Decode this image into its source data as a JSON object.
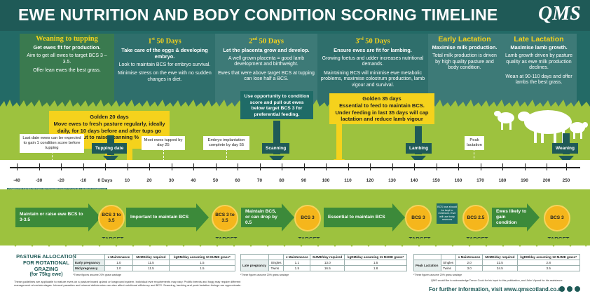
{
  "header": {
    "title": "EWE NUTRITION AND BODY CONDITION SCORING TIMELINE",
    "logo": "QMS"
  },
  "phases": [
    {
      "title": "Weaning to tupping",
      "subtitle": "Get ewes fit for production.",
      "body": [
        "Aim to get all ewes to target BCS 3 – 3.5.",
        "Offer lean ewes the best grass."
      ]
    },
    {
      "title_num": "1",
      "title_sup": "st",
      "title_rest": " 50 Days",
      "subtitle": "Take care of the eggs & developing embryo.",
      "body": [
        "Look to maintain BCS for embryo survival.",
        "Minimise stress on the ewe with no sudden changes in diet."
      ]
    },
    {
      "title_num": "2",
      "title_sup": "nd",
      "title_rest": " 50 Days",
      "subtitle": "Let the placenta grow and develop.",
      "body": [
        "A well grown placenta = good lamb development and birthweight.",
        "Ewes that were above target BCS at tupping can lose half a BCS."
      ]
    },
    {
      "title_num": "3",
      "title_sup": "rd",
      "title_rest": " 50 Days",
      "subtitle": "Ensure ewes are fit for lambing.",
      "body": [
        "Growing foetus and udder increases nutritional demands.",
        "Maintaining BCS will minimise ewe metabolic problems, maximise colostrum production, lamb vigour and survival."
      ]
    },
    {
      "title": "Early Lactation",
      "subtitle": "Maximise milk production.",
      "body": [
        "Total milk production is driven by high quality pasture and body condition."
      ]
    },
    {
      "title": "Late Lactation",
      "subtitle": "Maximise lamb growth.",
      "body": [
        "Lamb growth driven by pasture quality as ewe milk production declines.",
        "Wean at 90-110 days and offer lambs the best grass."
      ]
    }
  ],
  "golden_boxes": [
    {
      "title": "Golden 20 days",
      "body": "Move ewes to fresh pasture regularly, ideally daily, for 10 days before and after tups go out to raise scanning %"
    },
    {
      "title": "Golden 35 days",
      "body": "Essential to feed to maintain BCS. Under feeding in last 35 days will cap lactation and reduce lamb vigour"
    }
  ],
  "teal_callout": "Use opportunity to condition score and pull out ewes below target BCS 3 for preferential feeding.",
  "events": {
    "last_date": "Last date ewes can be expected to gain 1 condition score before tupping",
    "tupping": "Tupping date",
    "most_tupped": "Most ewes tupped by day 25",
    "embryo": "Embryo implantation complete by day 55",
    "scanning": "Scanning",
    "lambing": "Lambing",
    "peak": "Peak lactation",
    "weaning": "Weaning"
  },
  "axis": {
    "ticks": [
      "-40",
      "-30",
      "-20",
      "-10",
      "0 Days",
      "10",
      "20",
      "30",
      "40",
      "50",
      "60",
      "70",
      "80",
      "90",
      "100",
      "110",
      "120",
      "130",
      "140",
      "150",
      "160",
      "170",
      "180",
      "190",
      "200",
      "250"
    ],
    "note": "COMPLETE DATES OF THIS SECTION RELEVANT TO YOUR LAMBING SCHEDULE"
  },
  "bcs_row": {
    "arrows": [
      "Maintain or raise ewe BCS to 3-3.5",
      "Important to maintain BCS",
      "Maintain BCS, or can drop by 0.5",
      "Essential to maintain BCS",
      "Ewes likely to gain condition"
    ],
    "coins": [
      "BCS 3 to 3.5",
      "BCS 3 to 3.5",
      "BCS 3",
      "BCS 3",
      "BCS 2.5",
      "BCS 3"
    ],
    "small_note": "BCS loss should be kept to minimum. Ewe will use body reserves",
    "target": "TARGET"
  },
  "pasture": {
    "title": "PASTURE ALLOCATION FOR ROTATIONAL GRAZING",
    "subtitle": "(for 75kg ewe)",
    "table1": {
      "headers": [
        "",
        "x Maintenance",
        "MJME/day required",
        "kgDM/day assuming 10 MJME grass*"
      ],
      "rows": [
        [
          "Early pregnancy",
          "1.0",
          "11.5",
          "1.5"
        ],
        [
          "Mid pregnancy",
          "1.0",
          "11.5",
          "1.5"
        ]
      ],
      "note": "*These figures assume 20% grass wastage"
    },
    "table2": {
      "headers": [
        "",
        "",
        "x Maintenance",
        "MJME/day required",
        "kgDM/day assuming 11 MJME grass*"
      ],
      "group": "Late pregnancy",
      "rows": [
        [
          "Singles",
          "1.1",
          "13.0",
          "1.5"
        ],
        [
          "Twins",
          "1.5",
          "16.5",
          "1.8"
        ]
      ],
      "note": "*These figures assume 20% grass wastage"
    },
    "table3": {
      "headers": [
        "",
        "",
        "x Maintenance",
        "MJME/day required",
        "kgDM/day assuming 12 MJME grass*"
      ],
      "group": "Peak Lactation",
      "rows": [
        [
          "Singles",
          "2.0",
          "22.5",
          "2.8"
        ],
        [
          "Twins",
          "3.0",
          "34.5",
          "3.5"
        ]
      ],
      "note": "*These figures assume 20% grass wastage"
    }
  },
  "footer": {
    "disclaimer": "These guidelines are applicable to mature ewes on a pasture based upland or lowground system. Individual ewe requirements may vary. Prolific breeds and hogg may require different management at certain stages. Internal parasites and mineral deficiencies can also affect nutritional efficiency and BCS. Scanning, lambing and peak lactation timings are approximate.",
    "ack": "QMS would like to acknowledge Trevor Cook for his input to this publication, and John Vipond for his assistance",
    "info": "For further information, visit www.qmscotland.co.uk"
  },
  "colors": {
    "header": "#1f5a57",
    "accent": "#f5d21c",
    "grass": "#9dc23e",
    "coin": "#f5b61c"
  }
}
